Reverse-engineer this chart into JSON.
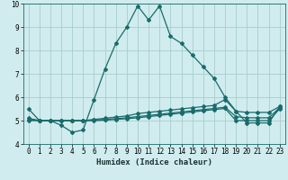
{
  "xlabel": "Humidex (Indice chaleur)",
  "xlim": [
    -0.5,
    23.5
  ],
  "ylim": [
    4,
    10
  ],
  "yticks": [
    4,
    5,
    6,
    7,
    8,
    9,
    10
  ],
  "xticks": [
    0,
    1,
    2,
    3,
    4,
    5,
    6,
    7,
    8,
    9,
    10,
    11,
    12,
    13,
    14,
    15,
    16,
    17,
    18,
    19,
    20,
    21,
    22,
    23
  ],
  "bg_color": "#d0ecee",
  "grid_color": "#a8cccc",
  "line_color": "#1a6b6b",
  "lines": [
    {
      "x": [
        0,
        1,
        2,
        3,
        4,
        5,
        6,
        7,
        8,
        9,
        10,
        11,
        12,
        13,
        14,
        15,
        16,
        17,
        18,
        19,
        20,
        21,
        22,
        23
      ],
      "y": [
        5.5,
        5.0,
        5.0,
        4.8,
        4.5,
        4.6,
        5.9,
        7.2,
        8.3,
        9.0,
        9.9,
        9.3,
        9.9,
        8.6,
        8.3,
        7.8,
        7.3,
        6.8,
        6.0,
        5.4,
        4.9,
        4.9,
        4.9,
        5.6
      ]
    },
    {
      "x": [
        0,
        1,
        2,
        3,
        4,
        5,
        6,
        7,
        8,
        9,
        10,
        11,
        12,
        13,
        14,
        15,
        16,
        17,
        18,
        19,
        20,
        21,
        22,
        23
      ],
      "y": [
        5.1,
        5.0,
        5.0,
        5.0,
        5.0,
        5.0,
        5.05,
        5.1,
        5.15,
        5.2,
        5.3,
        5.35,
        5.4,
        5.45,
        5.5,
        5.55,
        5.6,
        5.65,
        5.9,
        5.4,
        5.35,
        5.35,
        5.35,
        5.6
      ]
    },
    {
      "x": [
        0,
        1,
        2,
        3,
        4,
        5,
        6,
        7,
        8,
        9,
        10,
        11,
        12,
        13,
        14,
        15,
        16,
        17,
        18,
        19,
        20,
        21,
        22,
        23
      ],
      "y": [
        5.05,
        5.0,
        5.0,
        5.0,
        5.0,
        5.0,
        5.02,
        5.05,
        5.08,
        5.12,
        5.17,
        5.22,
        5.27,
        5.32,
        5.37,
        5.42,
        5.47,
        5.52,
        5.57,
        5.17,
        5.12,
        5.12,
        5.12,
        5.55
      ]
    },
    {
      "x": [
        0,
        1,
        2,
        3,
        4,
        5,
        6,
        7,
        8,
        9,
        10,
        11,
        12,
        13,
        14,
        15,
        16,
        17,
        18,
        19,
        20,
        21,
        22,
        23
      ],
      "y": [
        5.0,
        5.0,
        5.0,
        5.0,
        5.0,
        5.0,
        5.0,
        5.02,
        5.05,
        5.08,
        5.12,
        5.17,
        5.22,
        5.27,
        5.32,
        5.37,
        5.42,
        5.47,
        5.52,
        5.0,
        5.0,
        5.0,
        5.0,
        5.5
      ]
    }
  ],
  "marker": "D",
  "markersize": 2.0,
  "linewidth": 0.9
}
